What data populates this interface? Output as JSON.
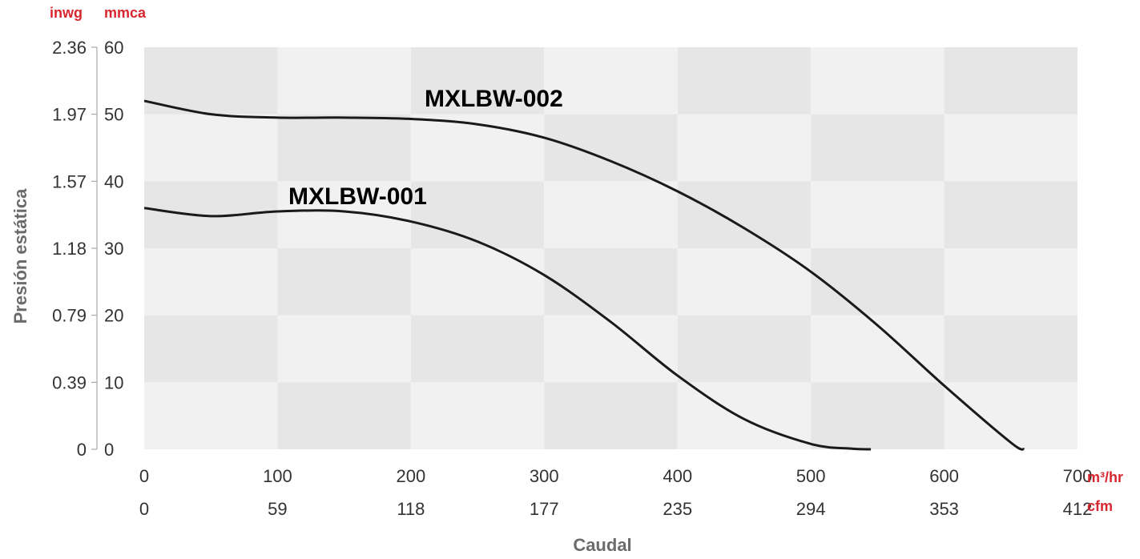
{
  "chart_data": {
    "type": "line",
    "title": "",
    "ylabel": "Presión estática",
    "xlabel": "Caudal",
    "y_units": {
      "left": "inwg",
      "right": "mmca"
    },
    "x_units": {
      "primary": "m³/hr",
      "secondary": "cfm"
    },
    "ylim": [
      0,
      60
    ],
    "xlim": [
      0,
      700
    ],
    "y_ticks_mmca": [
      "0",
      "10",
      "20",
      "30",
      "40",
      "50",
      "60"
    ],
    "y_ticks_inwg": [
      "0",
      "0.39",
      "0.79",
      "1.18",
      "1.57",
      "1.97",
      "2.36"
    ],
    "x_ticks_m3hr": [
      "0",
      "100",
      "200",
      "300",
      "400",
      "500",
      "600",
      "700"
    ],
    "x_ticks_cfm": [
      "0",
      "59",
      "118",
      "177",
      "235",
      "294",
      "353",
      "412"
    ],
    "grid": true,
    "series": [
      {
        "name": "MXLBW-002",
        "x": [
          0,
          50,
          100,
          150,
          200,
          250,
          300,
          350,
          400,
          450,
          500,
          550,
          600,
          650,
          660
        ],
        "y": [
          52,
          50,
          49.5,
          49.5,
          49.3,
          48.5,
          46.5,
          43,
          38.5,
          33,
          26.5,
          18.5,
          9.5,
          1,
          0
        ]
      },
      {
        "name": "MXLBW-001",
        "x": [
          0,
          50,
          100,
          150,
          200,
          250,
          300,
          350,
          400,
          450,
          500,
          530,
          545
        ],
        "y": [
          36,
          34.8,
          35.5,
          35.5,
          34,
          31,
          26,
          19,
          11,
          4.5,
          0.8,
          0.1,
          0
        ]
      }
    ]
  },
  "colors": {
    "unit_red": "#d8262e",
    "band_dark": "#e6e6e6",
    "band_light": "#f1f1f1",
    "curve": "#1a1a1a"
  }
}
